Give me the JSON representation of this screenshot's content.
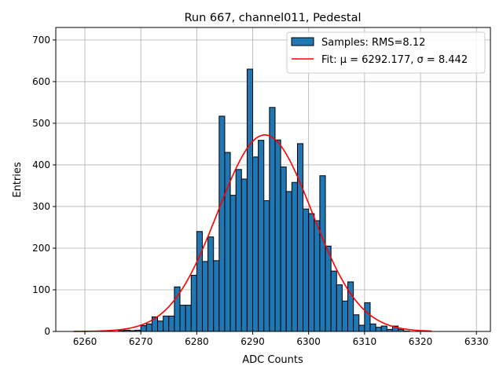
{
  "chart_data": {
    "type": "bar",
    "title": "Run 667, channel011, Pedestal",
    "xlabel": "ADC Counts",
    "ylabel": "Entries",
    "xlim": [
      6254.8,
      6332.5
    ],
    "ylim": [
      0,
      730
    ],
    "xticks": [
      6260,
      6270,
      6280,
      6290,
      6300,
      6310,
      6320,
      6330
    ],
    "yticks": [
      0,
      100,
      200,
      300,
      400,
      500,
      600,
      700
    ],
    "grid": true,
    "legend_position": "top-right",
    "bin_width": 1,
    "bin_edges_start": [
      6266,
      6267,
      6268,
      6269,
      6270,
      6271,
      6272,
      6273,
      6274,
      6275,
      6276,
      6277,
      6278,
      6279,
      6280,
      6281,
      6282,
      6283,
      6284,
      6285,
      6286,
      6287,
      6288,
      6289,
      6290,
      6291,
      6292,
      6293,
      6294,
      6295,
      6296,
      6297,
      6298,
      6299,
      6300,
      6301,
      6302,
      6303,
      6304,
      6305,
      6306,
      6307,
      6308,
      6309,
      6310,
      6311,
      6312,
      6313,
      6314,
      6315,
      6316,
      6317
    ],
    "values": [
      2,
      3,
      2,
      3,
      14,
      18,
      35,
      25,
      37,
      37,
      107,
      63,
      63,
      135,
      240,
      168,
      227,
      170,
      517,
      430,
      327,
      389,
      366,
      630,
      419,
      459,
      314,
      538,
      460,
      395,
      336,
      358,
      451,
      294,
      283,
      266,
      374,
      205,
      145,
      112,
      73,
      119,
      40,
      15,
      69,
      18,
      10,
      13,
      5,
      13,
      5,
      1
    ],
    "series": [
      {
        "name": "Samples: RMS=8.12",
        "kind": "histogram",
        "color": "#1f77b4"
      },
      {
        "name": "Fit: μ = 6292.177, σ = 8.442",
        "kind": "line",
        "color": "#ff0000",
        "mu": 6292.177,
        "sigma": 8.442,
        "amplitude": 472,
        "x_range": [
          6258,
          6322
        ]
      }
    ]
  }
}
